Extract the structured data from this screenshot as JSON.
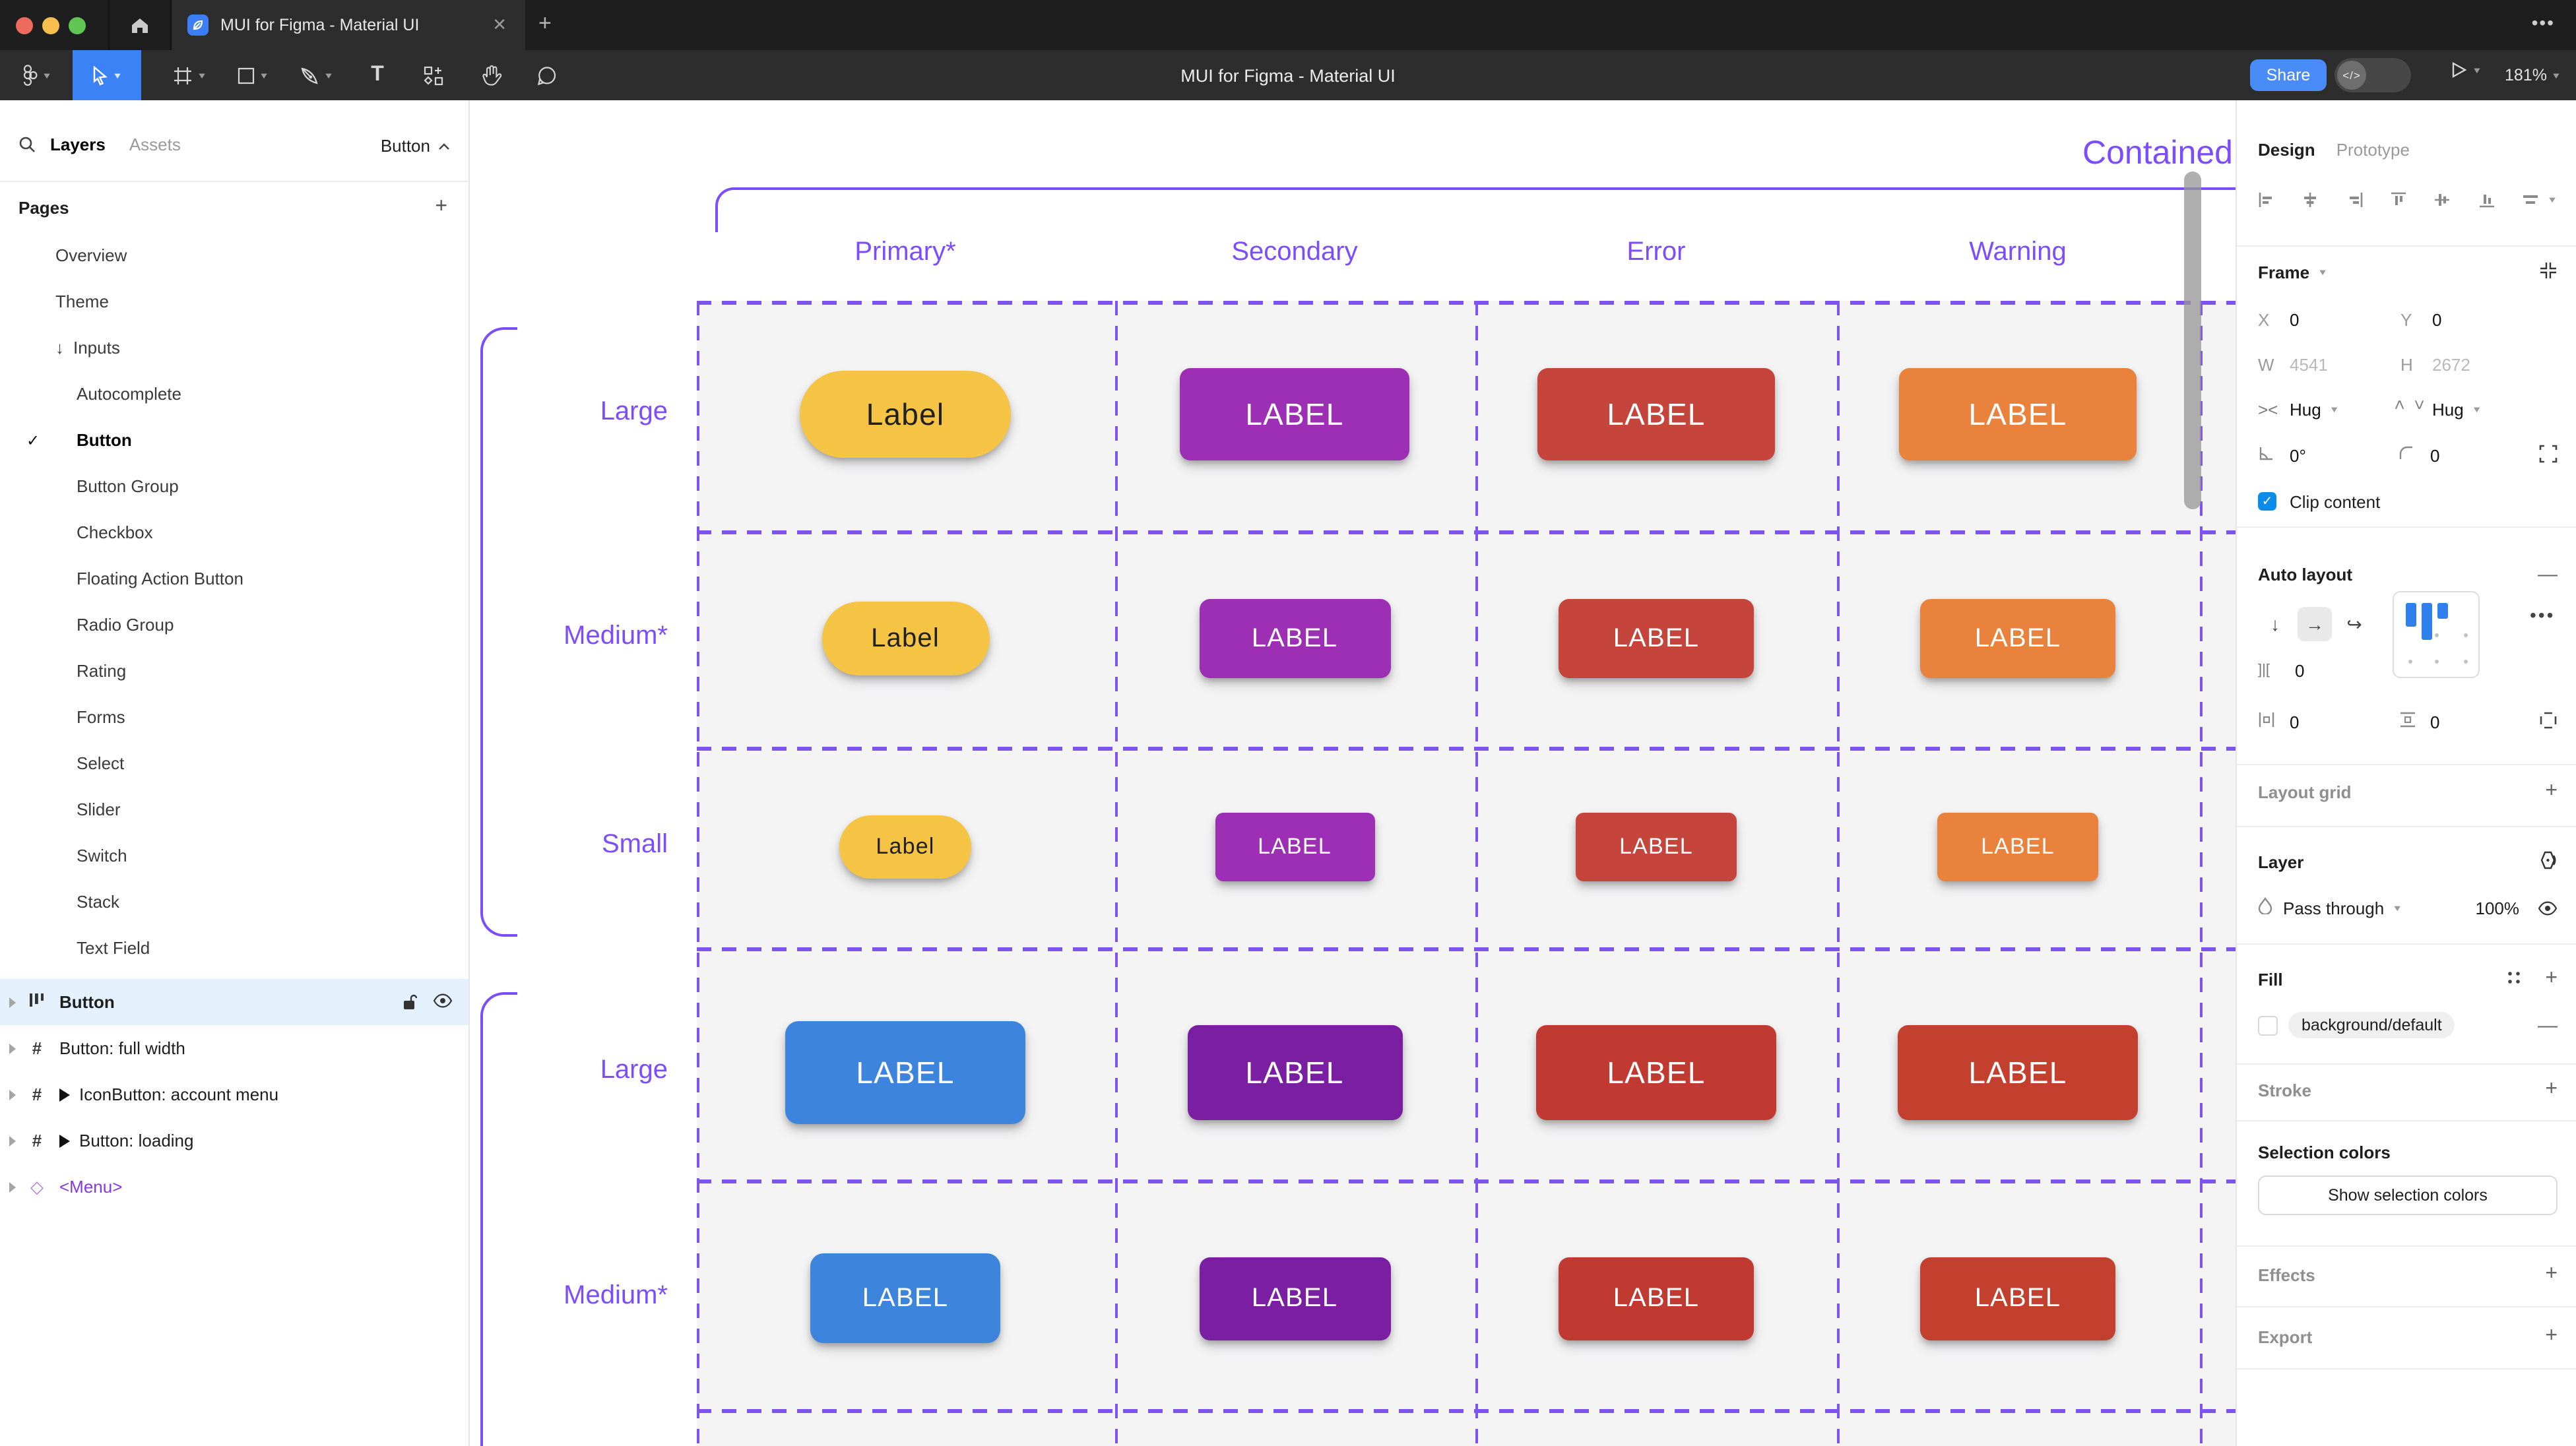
{
  "titlebar": {
    "tab_title": "MUI for Figma - Material UI",
    "close_glyph": "✕",
    "new_tab_glyph": "+",
    "more_glyph": "•••"
  },
  "toolbar": {
    "doc_title": "MUI for Figma - Material UI",
    "share_label": "Share",
    "dev_toggle_glyph": "</>",
    "zoom_level": "181%"
  },
  "sidebar": {
    "tabs": {
      "layers": "Layers",
      "assets": "Assets"
    },
    "page_selector": "Button",
    "pages_title": "Pages",
    "pages": [
      {
        "label": "Overview",
        "indent": 1
      },
      {
        "label": "Theme",
        "indent": 1
      },
      {
        "label": "Inputs",
        "indent": 1,
        "arrow": "↓"
      },
      {
        "label": "Autocomplete",
        "indent": 2
      },
      {
        "label": "Button",
        "indent": 2,
        "checked": true
      },
      {
        "label": "Button Group",
        "indent": 2
      },
      {
        "label": "Checkbox",
        "indent": 2
      },
      {
        "label": "Floating Action Button",
        "indent": 2
      },
      {
        "label": "Radio Group",
        "indent": 2
      },
      {
        "label": "Rating",
        "indent": 2
      },
      {
        "label": "Forms",
        "indent": 2
      },
      {
        "label": "Select",
        "indent": 2
      },
      {
        "label": "Slider",
        "indent": 2
      },
      {
        "label": "Switch",
        "indent": 2
      },
      {
        "label": "Stack",
        "indent": 2
      },
      {
        "label": "Text Field",
        "indent": 2
      }
    ],
    "layers": [
      {
        "label": "Button",
        "type": "autolayout",
        "selected": true
      },
      {
        "label": "Button: full width",
        "type": "frame"
      },
      {
        "label": "IconButton: account menu",
        "type": "frame",
        "play": true
      },
      {
        "label": "Button: loading",
        "type": "frame",
        "play": true
      },
      {
        "label": "<Menu>",
        "type": "instance"
      }
    ]
  },
  "canvas": {
    "heading": "Contained",
    "accent": "#7C4DFF",
    "columns": [
      "Primary*",
      "Secondary",
      "Error",
      "Warning"
    ],
    "rows": [
      {
        "label": "Large",
        "buttons": [
          {
            "text": "Label",
            "bg": "#F6C445",
            "fg": "#202020"
          },
          {
            "text": "LABEL",
            "bg": "#9C2FB4",
            "fg": "#FFFFFF"
          },
          {
            "text": "LABEL",
            "bg": "#C5453C",
            "fg": "#FFFFFF"
          },
          {
            "text": "LABEL",
            "bg": "#E8823C",
            "fg": "#FFFFFF"
          }
        ]
      },
      {
        "label": "Medium*",
        "buttons": [
          {
            "text": "Label",
            "bg": "#F6C445",
            "fg": "#202020"
          },
          {
            "text": "LABEL",
            "bg": "#9C2FB4",
            "fg": "#FFFFFF"
          },
          {
            "text": "LABEL",
            "bg": "#C5453C",
            "fg": "#FFFFFF"
          },
          {
            "text": "LABEL",
            "bg": "#E8823C",
            "fg": "#FFFFFF"
          }
        ]
      },
      {
        "label": "Small",
        "buttons": [
          {
            "text": "Label",
            "bg": "#F6C445",
            "fg": "#202020"
          },
          {
            "text": "LABEL",
            "bg": "#9C2FB4",
            "fg": "#FFFFFF"
          },
          {
            "text": "LABEL",
            "bg": "#C5453C",
            "fg": "#FFFFFF"
          },
          {
            "text": "LABEL",
            "bg": "#E8823C",
            "fg": "#FFFFFF"
          }
        ]
      },
      {
        "label": "Large",
        "buttons": [
          {
            "text": "LABEL",
            "bg": "#3D85DC",
            "fg": "#FFFFFF"
          },
          {
            "text": "LABEL",
            "bg": "#7B1FA2",
            "fg": "#FFFFFF"
          },
          {
            "text": "LABEL",
            "bg": "#C03A31",
            "fg": "#FFFFFF"
          },
          {
            "text": "LABEL",
            "bg": "#C3402F",
            "fg": "#FFFFFF"
          }
        ]
      },
      {
        "label": "Medium*",
        "buttons": [
          {
            "text": "LABEL",
            "bg": "#3D85DC",
            "fg": "#FFFFFF"
          },
          {
            "text": "LABEL",
            "bg": "#7B1FA2",
            "fg": "#FFFFFF"
          },
          {
            "text": "LABEL",
            "bg": "#C03A31",
            "fg": "#FFFFFF"
          },
          {
            "text": "LABEL",
            "bg": "#C3402F",
            "fg": "#FFFFFF"
          }
        ]
      }
    ]
  },
  "panel": {
    "tabs": {
      "design": "Design",
      "prototype": "Prototype"
    },
    "frame": {
      "title": "Frame",
      "x_label": "X",
      "x_value": "0",
      "y_label": "Y",
      "y_value": "0",
      "w_label": "W",
      "w_value": "4541",
      "h_label": "H",
      "h_value": "2672",
      "hug_h": "Hug",
      "hug_v": "Hug",
      "rotation": "0°",
      "corner_radius": "0",
      "clip_label": "Clip content"
    },
    "auto_layout": {
      "title": "Auto layout",
      "gap_value": "0",
      "pad_h_value": "0",
      "pad_v_value": "0"
    },
    "layout_grid": {
      "title": "Layout grid"
    },
    "layer": {
      "title": "Layer",
      "blend_mode": "Pass through",
      "opacity": "100%"
    },
    "fill": {
      "title": "Fill",
      "token": "background/default"
    },
    "stroke": {
      "title": "Stroke"
    },
    "selection_colors": {
      "title": "Selection colors",
      "show_button": "Show selection colors"
    },
    "effects": {
      "title": "Effects"
    },
    "export": {
      "title": "Export"
    }
  }
}
